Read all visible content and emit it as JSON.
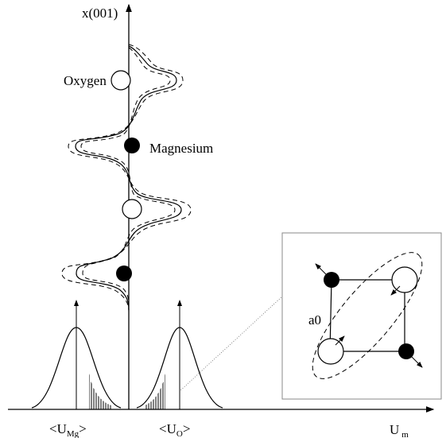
{
  "axis": {
    "vertical_label": "x(001)",
    "horizontal": {
      "base": "U",
      "sub": "m"
    }
  },
  "atoms": {
    "oxygen": "Oxygen",
    "magnesium": "Magnesium"
  },
  "distributions": {
    "mg": {
      "open": "<U",
      "sub": "Mg",
      "close": ">"
    },
    "o": {
      "open": "<U",
      "sub": "O",
      "close": ">"
    }
  },
  "inset": {
    "lattice_label": "a0"
  }
}
